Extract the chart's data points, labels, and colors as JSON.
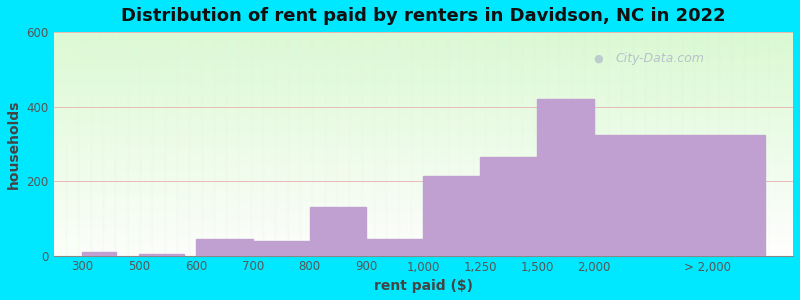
{
  "title": "Distribution of rent paid by renters in Davidson, NC in 2022",
  "xlabel": "rent paid ($)",
  "ylabel": "households",
  "tick_labels": [
    "300",
    "500",
    "600",
    "700",
    "800",
    "900",
    "1,000",
    "1,250",
    "1,500",
    "2,000",
    "> 2,000"
  ],
  "tick_x": [
    0,
    1,
    2,
    3,
    4,
    5,
    6,
    7,
    8,
    9,
    11
  ],
  "bar_lefts": [
    0,
    1,
    2,
    3,
    4,
    5,
    6,
    7,
    8,
    9
  ],
  "bar_rights": [
    0.6,
    1.8,
    3,
    4,
    5,
    6,
    7,
    8,
    9,
    12
  ],
  "bar_heights": [
    10,
    5,
    45,
    40,
    130,
    45,
    215,
    265,
    420,
    325
  ],
  "bar_color": "#c0a0d0",
  "ylim": [
    0,
    600
  ],
  "xlim": [
    -0.5,
    12.5
  ],
  "yticks": [
    0,
    200,
    400,
    600
  ],
  "background_outer": "#00e8ff",
  "title_fontsize": 13,
  "axis_label_fontsize": 10,
  "tick_label_fontsize": 8.5,
  "watermark_text": "City-Data.com"
}
